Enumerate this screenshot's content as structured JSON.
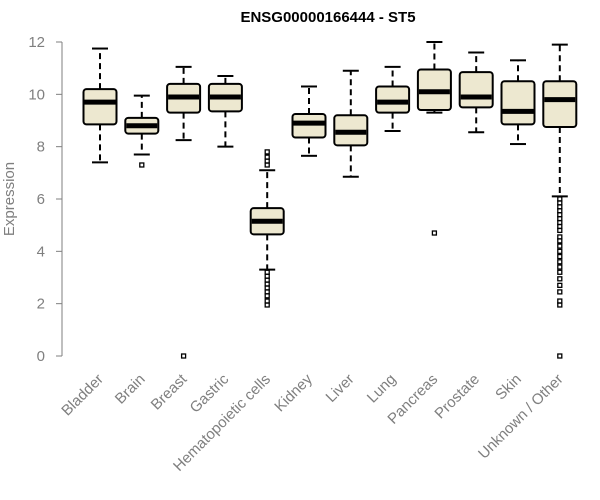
{
  "chart_data": {
    "type": "box",
    "title": "ENSG00000166444 - ST5",
    "xlabel": "",
    "ylabel": "Expression",
    "ylim": [
      0,
      12
    ],
    "yticks": [
      0,
      2,
      4,
      6,
      8,
      10,
      12
    ],
    "colors": {
      "box_fill": "#ede8d0",
      "stroke": "#000000",
      "axis": "#7f7f7f"
    },
    "categories": [
      "Bladder",
      "Brain",
      "Breast",
      "Gastric",
      "Hematopoietic cells",
      "Kidney",
      "Liver",
      "Lung",
      "Pancreas",
      "Prostate",
      "Skin",
      "Unknown / Other"
    ],
    "boxes": [
      {
        "label": "Bladder",
        "whisker_low": 7.4,
        "q1": 8.85,
        "median": 9.7,
        "q3": 10.2,
        "whisker_high": 11.75,
        "outliers": []
      },
      {
        "label": "Brain",
        "whisker_low": 7.7,
        "q1": 8.5,
        "median": 8.8,
        "q3": 9.1,
        "whisker_high": 9.95,
        "outliers": [
          7.3
        ]
      },
      {
        "label": "Breast",
        "whisker_low": 8.25,
        "q1": 9.3,
        "median": 9.9,
        "q3": 10.4,
        "whisker_high": 11.05,
        "outliers": [
          0.0
        ]
      },
      {
        "label": "Gastric",
        "whisker_low": 8.0,
        "q1": 9.35,
        "median": 9.9,
        "q3": 10.4,
        "whisker_high": 10.7,
        "outliers": []
      },
      {
        "label": "Hematopoietic cells",
        "whisker_low": 3.3,
        "q1": 4.65,
        "median": 5.15,
        "q3": 5.65,
        "whisker_high": 7.1,
        "outliers": [
          7.8,
          7.6,
          7.45,
          7.3,
          3.2,
          3.05,
          2.9,
          2.75,
          2.6,
          2.45,
          2.3,
          2.1,
          1.95
        ]
      },
      {
        "label": "Kidney",
        "whisker_low": 7.65,
        "q1": 8.35,
        "median": 8.9,
        "q3": 9.25,
        "whisker_high": 10.3,
        "outliers": []
      },
      {
        "label": "Liver",
        "whisker_low": 6.85,
        "q1": 8.05,
        "median": 8.55,
        "q3": 9.2,
        "whisker_high": 10.9,
        "outliers": []
      },
      {
        "label": "Lung",
        "whisker_low": 8.6,
        "q1": 9.3,
        "median": 9.7,
        "q3": 10.3,
        "whisker_high": 11.05,
        "outliers": []
      },
      {
        "label": "Pancreas",
        "whisker_low": 9.3,
        "q1": 9.4,
        "median": 10.1,
        "q3": 10.95,
        "whisker_high": 12.0,
        "outliers": [
          4.7
        ]
      },
      {
        "label": "Prostate",
        "whisker_low": 8.55,
        "q1": 9.5,
        "median": 9.9,
        "q3": 10.85,
        "whisker_high": 11.6,
        "outliers": []
      },
      {
        "label": "Skin",
        "whisker_low": 8.1,
        "q1": 8.85,
        "median": 9.35,
        "q3": 10.5,
        "whisker_high": 11.3,
        "outliers": []
      },
      {
        "label": "Unknown / Other",
        "whisker_low": 6.1,
        "q1": 8.75,
        "median": 9.8,
        "q3": 10.5,
        "whisker_high": 11.9,
        "outliers": [
          6.0,
          5.85,
          5.7,
          5.55,
          5.4,
          5.25,
          5.1,
          4.95,
          4.8,
          4.55,
          4.4,
          4.2,
          4.0,
          3.8,
          3.6,
          3.4,
          3.2,
          2.95,
          2.7,
          2.45,
          2.1,
          1.95,
          0.0
        ]
      }
    ]
  }
}
